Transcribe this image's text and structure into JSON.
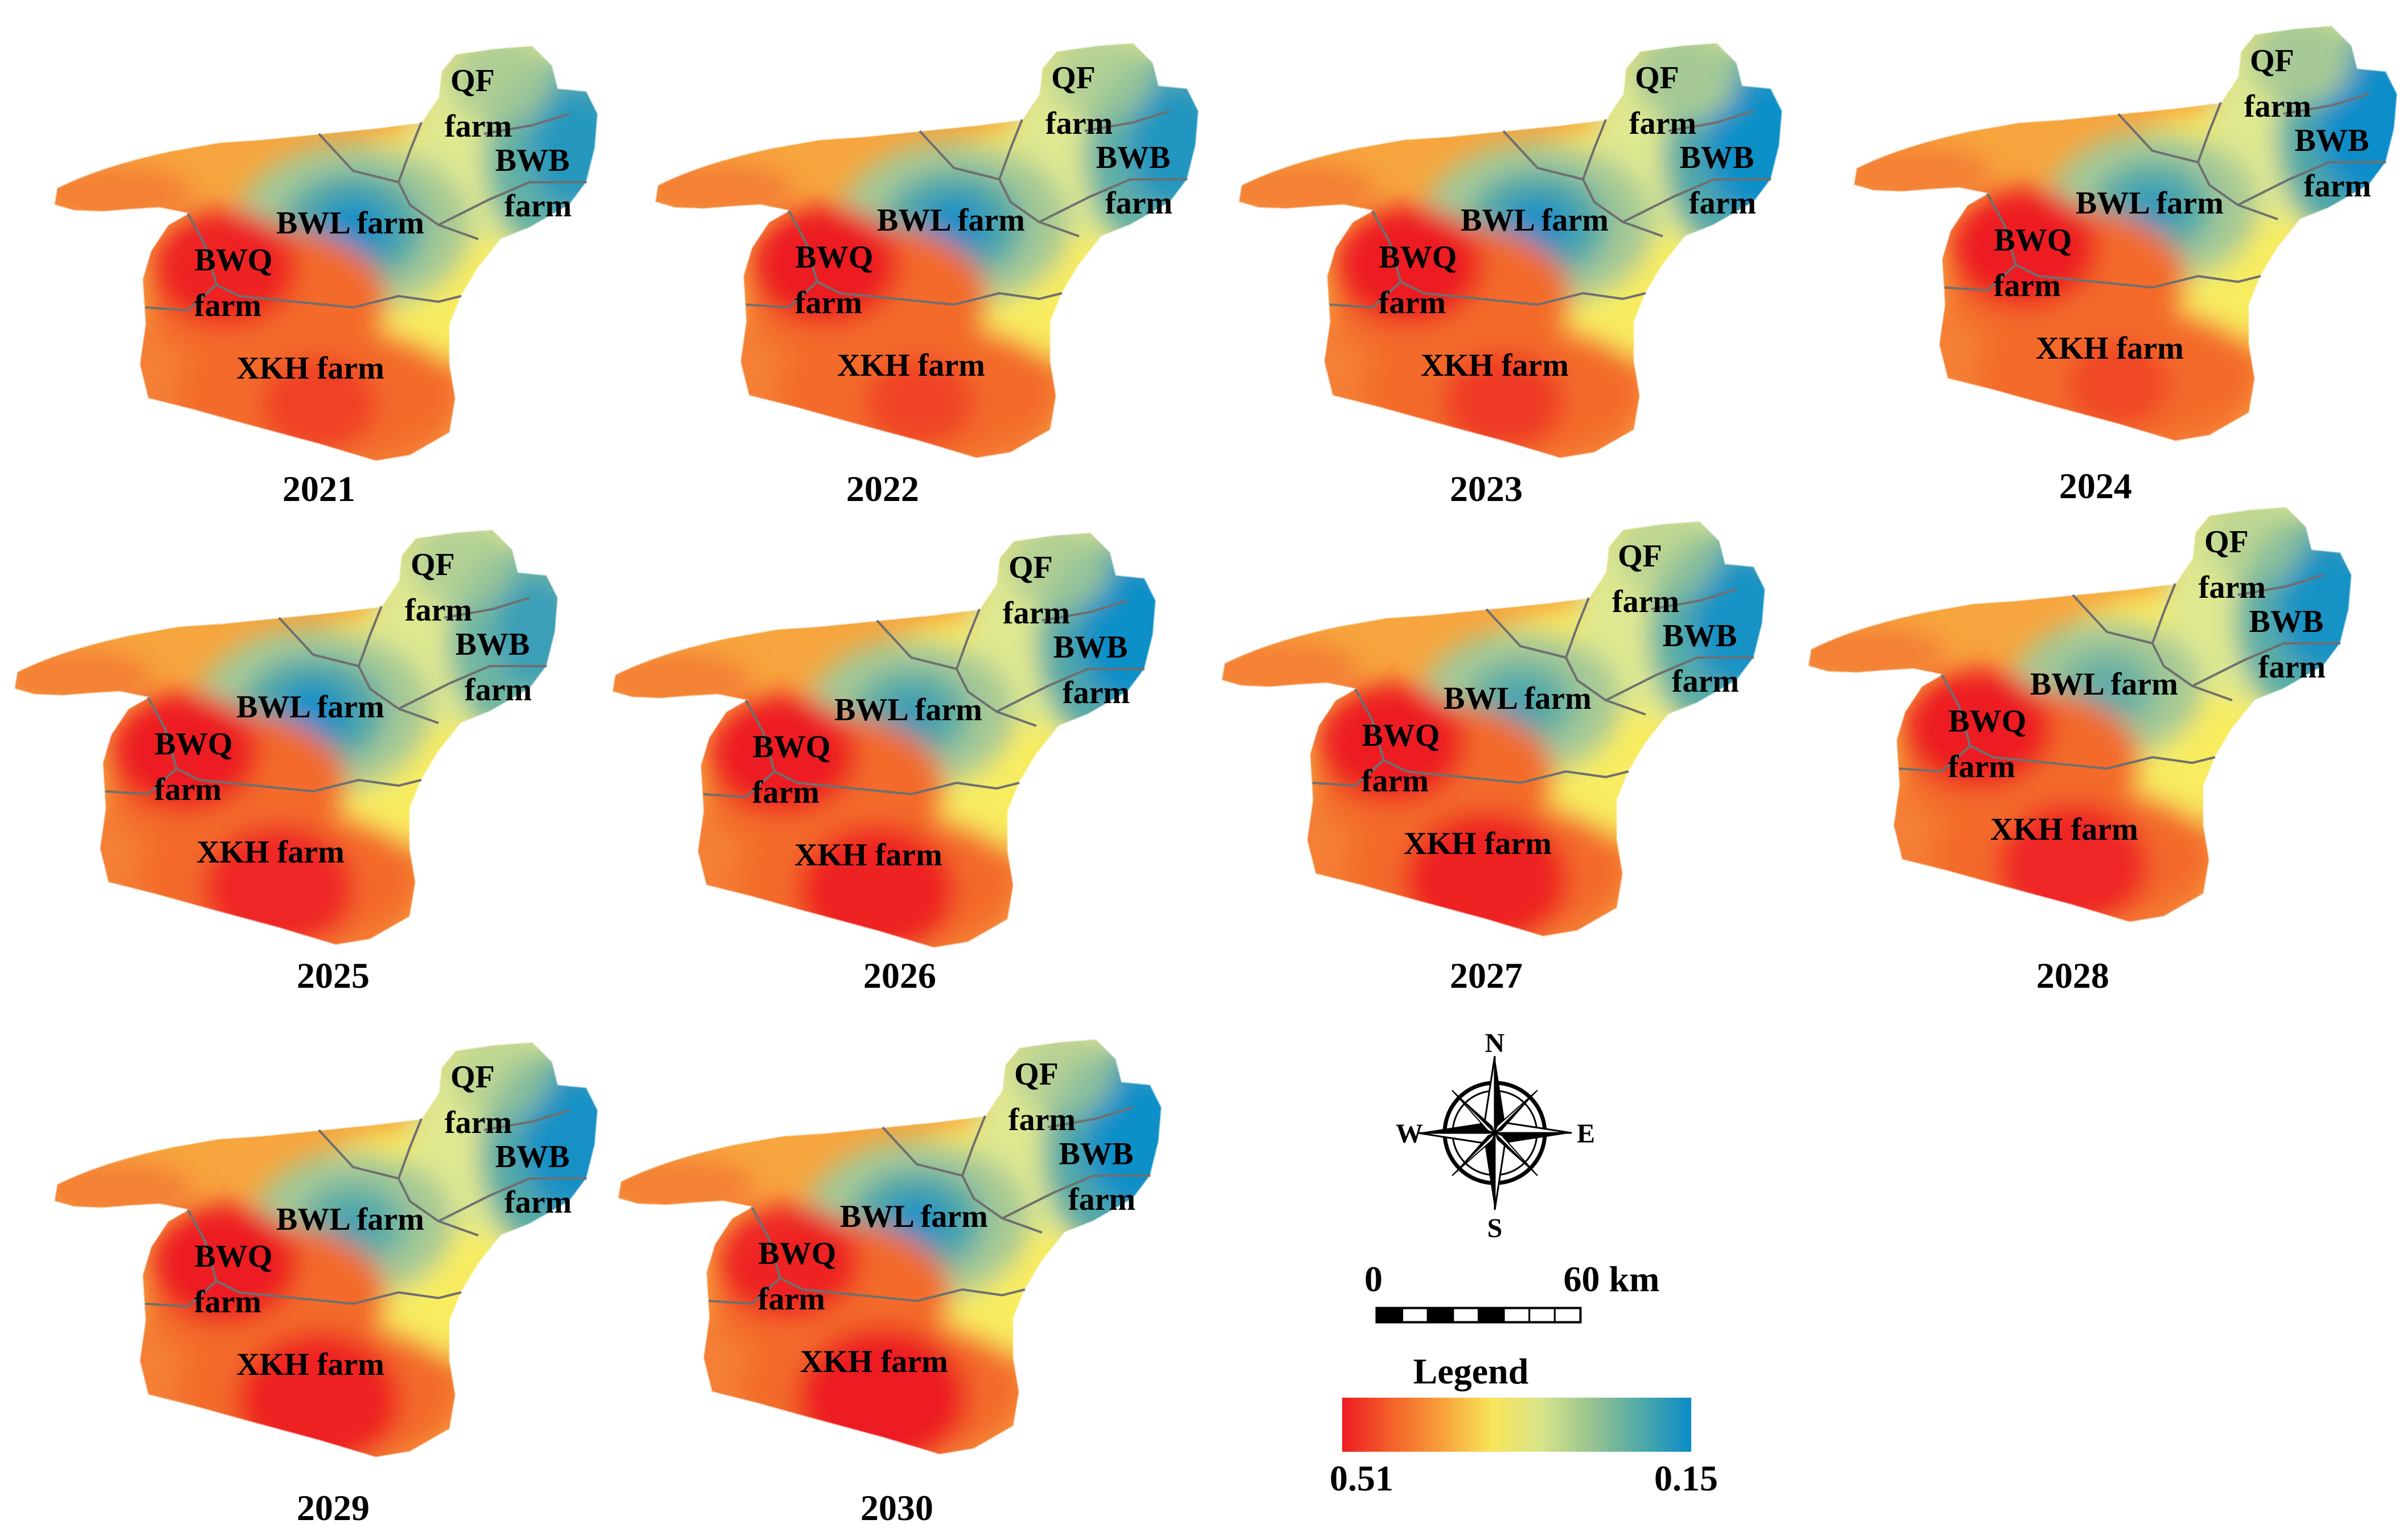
{
  "maps": [
    {
      "year": "2021",
      "labels": {
        "qf": [
          "QF",
          "farm"
        ],
        "bwb": [
          "BWB",
          "farm"
        ],
        "bwl": [
          "BWL farm"
        ],
        "bwq": [
          "BWQ",
          "farm"
        ],
        "xkh": [
          "XKH farm"
        ]
      },
      "blue": {
        "bwl": 0.95,
        "bwb": 0.7,
        "qf": 0.45
      },
      "red": {
        "bwq": 0.95,
        "xkh": 0.55
      }
    },
    {
      "year": "2022",
      "labels": {
        "qf": [
          "QF",
          "farm"
        ],
        "bwb": [
          "BWB",
          "farm"
        ],
        "bwl": [
          "BWL farm"
        ],
        "bwq": [
          "BWQ",
          "farm"
        ],
        "xkh": [
          "XKH farm"
        ]
      },
      "blue": {
        "bwl": 0.9,
        "bwb": 0.75,
        "qf": 0.35
      },
      "red": {
        "bwq": 1.0,
        "xkh": 0.5
      }
    },
    {
      "year": "2023",
      "labels": {
        "qf": [
          "QF",
          "farm"
        ],
        "bwb": [
          "BWB",
          "farm"
        ],
        "bwl": [
          "BWL farm"
        ],
        "bwq": [
          "BWQ",
          "farm"
        ],
        "xkh": [
          "XKH farm"
        ]
      },
      "blue": {
        "bwl": 0.9,
        "bwb": 0.95,
        "qf": 0.6
      },
      "red": {
        "bwq": 1.0,
        "xkh": 0.6
      }
    },
    {
      "year": "2024",
      "labels": {
        "qf": [
          "QF",
          "farm"
        ],
        "bwb": [
          "BWB",
          "farm"
        ],
        "bwl": [
          "BWL farm"
        ],
        "bwq": [
          "BWQ",
          "farm"
        ],
        "xkh": [
          "XKH farm"
        ]
      },
      "blue": {
        "bwl": 0.6,
        "bwb": 1.0,
        "qf": 0.6
      },
      "red": {
        "bwq": 1.0,
        "xkh": 0.45
      }
    },
    {
      "year": "2025",
      "labels": {
        "qf": [
          "QF",
          "farm"
        ],
        "bwb": [
          "BWB",
          "farm"
        ],
        "bwl": [
          "BWL farm"
        ],
        "bwq": [
          "BWQ",
          "farm"
        ],
        "xkh": [
          "XKH farm"
        ]
      },
      "blue": {
        "bwl": 0.95,
        "bwb": 0.55,
        "qf": 0.35
      },
      "red": {
        "bwq": 1.0,
        "xkh": 0.85
      }
    },
    {
      "year": "2026",
      "labels": {
        "qf": [
          "QF",
          "farm"
        ],
        "bwb": [
          "BWB",
          "farm"
        ],
        "bwl": [
          "BWL farm"
        ],
        "bwq": [
          "BWQ",
          "farm"
        ],
        "xkh": [
          "XKH farm"
        ]
      },
      "blue": {
        "bwl": 0.55,
        "bwb": 0.95,
        "qf": 0.4
      },
      "red": {
        "bwq": 1.0,
        "xkh": 0.9
      }
    },
    {
      "year": "2027",
      "labels": {
        "qf": [
          "QF",
          "farm"
        ],
        "bwb": [
          "BWB",
          "farm"
        ],
        "bwl": [
          "BWL farm"
        ],
        "bwq": [
          "BWQ",
          "farm"
        ],
        "xkh": [
          "XKH farm"
        ]
      },
      "blue": {
        "bwl": 0.45,
        "bwb": 0.85,
        "qf": 0.2
      },
      "red": {
        "bwq": 1.0,
        "xkh": 0.95
      }
    },
    {
      "year": "2028",
      "labels": {
        "qf": [
          "QF",
          "farm"
        ],
        "bwb": [
          "BWB",
          "farm"
        ],
        "bwl": [
          "BWL farm"
        ],
        "bwq": [
          "BWQ",
          "farm"
        ],
        "xkh": [
          "XKH farm"
        ]
      },
      "blue": {
        "bwl": 0.3,
        "bwb": 0.85,
        "qf": 0.2
      },
      "red": {
        "bwq": 1.0,
        "xkh": 0.85
      }
    },
    {
      "year": "2029",
      "labels": {
        "qf": [
          "QF",
          "farm"
        ],
        "bwb": [
          "BWB",
          "farm"
        ],
        "bwl": [
          "BWL farm"
        ],
        "bwq": [
          "BWQ",
          "farm"
        ],
        "xkh": [
          "XKH farm"
        ]
      },
      "blue": {
        "bwl": 0.45,
        "bwb": 0.9,
        "qf": 0.2
      },
      "red": {
        "bwq": 1.0,
        "xkh": 0.95
      }
    },
    {
      "year": "2030",
      "labels": {
        "qf": [
          "QF",
          "farm"
        ],
        "bwb": [
          "BWB",
          "farm"
        ],
        "bwl": [
          "BWL farm"
        ],
        "bwq": [
          "BWQ",
          "farm"
        ],
        "xkh": [
          "XKH farm"
        ]
      },
      "blue": {
        "bwl": 0.8,
        "bwb": 0.95,
        "qf": 0.3
      },
      "red": {
        "bwq": 0.9,
        "xkh": 1.0
      }
    }
  ],
  "compass": {
    "n": "N",
    "s": "S",
    "e": "E",
    "w": "W"
  },
  "scale_bar": {
    "start": "0",
    "end": "60 km"
  },
  "legend": {
    "title": "Legend",
    "max_label": "0.51",
    "min_label": "0.15",
    "colors": [
      "#ee1c23",
      "#f4622a",
      "#f7a03a",
      "#f9e55a",
      "#d7e48a",
      "#98c38f",
      "#4ea9a8",
      "#0b8cc8"
    ]
  },
  "colors": {
    "base": "#f7a53e",
    "outer": "#f47f34",
    "orange": "#f36a2c",
    "red": "#ed1c24",
    "yellow": "#f8ec60",
    "lightgreen": "#dfe890",
    "green": "#a6c995",
    "teal": "#4fa7a8",
    "blue": "#0e8dc9",
    "boundary": "#6f6f6f"
  }
}
